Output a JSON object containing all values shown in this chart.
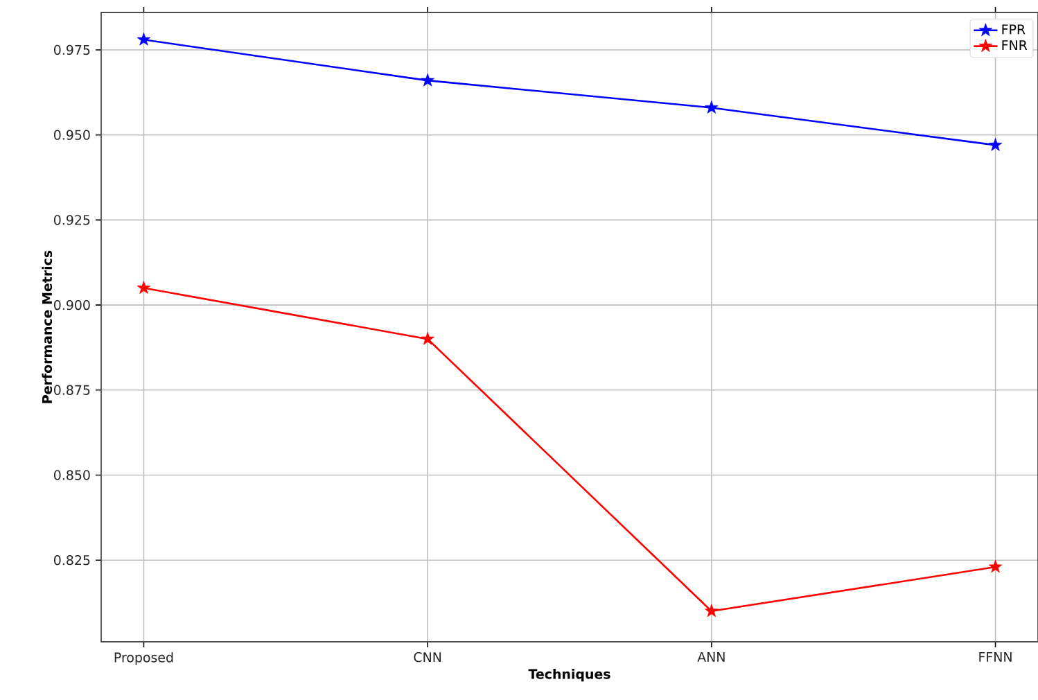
{
  "chart_data": {
    "type": "line",
    "xlabel": "Techniques",
    "ylabel": "Performance Metrics",
    "categories": [
      "Proposed",
      "CNN",
      "ANN",
      "FFNN"
    ],
    "series": [
      {
        "name": "FPR",
        "color": "#0000ff",
        "values": [
          0.978,
          0.966,
          0.958,
          0.947
        ]
      },
      {
        "name": "FNR",
        "color": "#ff0000",
        "values": [
          0.905,
          0.89,
          0.81,
          0.823
        ]
      }
    ],
    "ylim": [
      0.801,
      0.986
    ],
    "yticks": [
      0.825,
      {
        "value": 0.85,
        "label": "0.850"
      },
      0.875,
      {
        "value": 0.9,
        "label": "0.900"
      },
      0.925,
      {
        "value": 0.95,
        "label": "0.950"
      },
      0.975
    ],
    "grid": true,
    "legend": "top right",
    "marker": "star",
    "line_style": "solid"
  }
}
